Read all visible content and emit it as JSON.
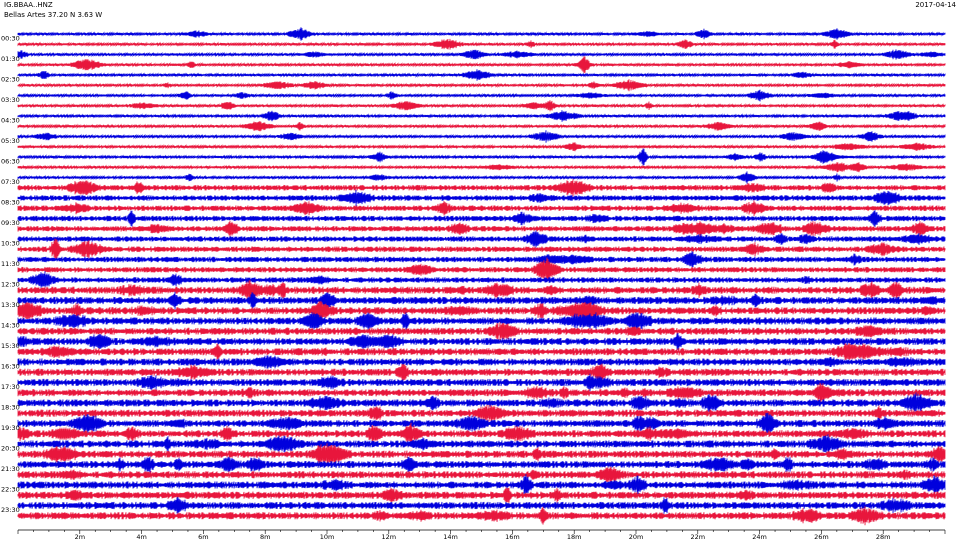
{
  "header": {
    "station": "IG.BBAA..HNZ",
    "location": "Bellas Artes  37.20 N 3.63 W",
    "date": "2017-04-14"
  },
  "chart_data": {
    "type": "helicorder",
    "colors": {
      "blue": "#0000dd",
      "red": "#e8163c",
      "axis": "#000000"
    },
    "row_labels": [
      "00:30",
      "01:30",
      "02:30",
      "03:30",
      "04:30",
      "05:30",
      "06:30",
      "07:30",
      "08:30",
      "09:30",
      "10:30",
      "11:30",
      "12:30",
      "13:30",
      "14:30",
      "15:30",
      "16:30",
      "17:30",
      "18:30",
      "19:30",
      "20:30",
      "21:30",
      "22:30",
      "23:30"
    ],
    "rows_per_labeled_interval": 2,
    "x_minutes_range": [
      0,
      30
    ],
    "x_tick_labels": [
      {
        "value": 2,
        "label": "2m"
      },
      {
        "value": 4,
        "label": "4m"
      },
      {
        "value": 6,
        "label": "6m"
      },
      {
        "value": 8,
        "label": "8m"
      },
      {
        "value": 10,
        "label": "10m"
      },
      {
        "value": 12,
        "label": "12m"
      },
      {
        "value": 14,
        "label": "14m"
      },
      {
        "value": 16,
        "label": "16m"
      },
      {
        "value": 18,
        "label": "18m"
      },
      {
        "value": 20,
        "label": "20m"
      },
      {
        "value": 22,
        "label": "22m"
      },
      {
        "value": 24,
        "label": "24m"
      },
      {
        "value": 26,
        "label": "26m"
      },
      {
        "value": 28,
        "label": "28m"
      }
    ]
  }
}
